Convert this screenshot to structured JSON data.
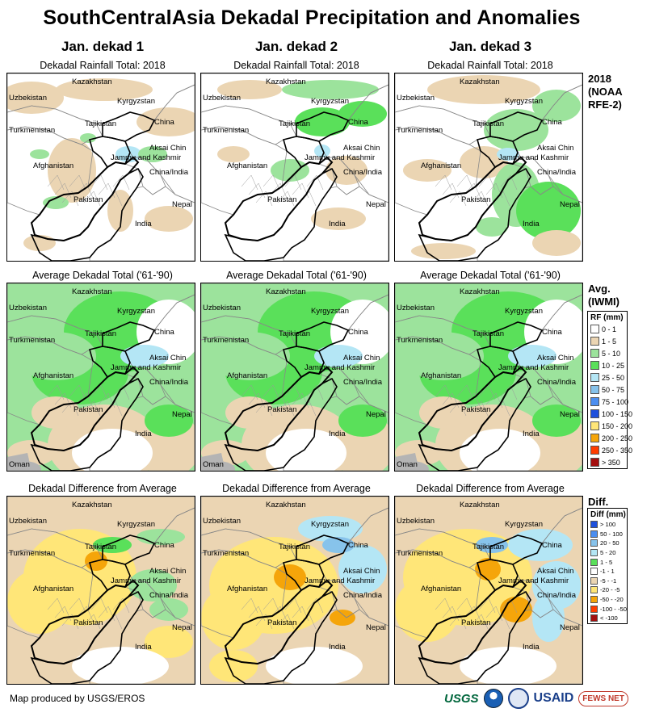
{
  "title": "SouthCentralAsia Dekadal Precipitation and Anomalies",
  "columns": [
    "Jan. dekad 1",
    "Jan. dekad 2",
    "Jan. dekad 3"
  ],
  "row_subtitles": [
    "Dekadal Rainfall Total: 2018",
    "Average Dekadal Total ('61-'90)",
    "Dekadal Difference from Average"
  ],
  "side_titles": {
    "row1": [
      "2018",
      "(NOAA",
      "RFE-2)"
    ],
    "row2": [
      "Avg.",
      "(IWMI)"
    ],
    "row3": [
      "Diff."
    ]
  },
  "map_labels": {
    "kazakhstan": "Kazakhstan",
    "uzbekistan": "Uzbekistan",
    "kyrgyzstan": "Kyrgyzstan",
    "turkmenistan": "Turkmenistan",
    "tajikistan": "Tajikistan",
    "china": "China",
    "aksai_chin": "Aksai Chin",
    "jammu_kashmir": "Jammu and Kashmir",
    "china_india": "China/India",
    "afghanistan": "Afghanistan",
    "pakistan": "Pakistan",
    "nepal": "Nepal",
    "india": "India",
    "oman": "Oman"
  },
  "rf_legend": {
    "title": "RF (mm)",
    "items": [
      {
        "label": "0 - 1",
        "color": "#ffffff"
      },
      {
        "label": "1 - 5",
        "color": "#ebd5b3"
      },
      {
        "label": "5 - 10",
        "color": "#9ce39c"
      },
      {
        "label": "10 - 25",
        "color": "#5ae05a"
      },
      {
        "label": "25 - 50",
        "color": "#b4e6f5"
      },
      {
        "label": "50 - 75",
        "color": "#87c3eb"
      },
      {
        "label": "75 - 100",
        "color": "#4b8ef0"
      },
      {
        "label": "100 - 150",
        "color": "#1e50dc"
      },
      {
        "label": "150 - 200",
        "color": "#ffe678"
      },
      {
        "label": "200 - 250",
        "color": "#f5a50a"
      },
      {
        "label": "250 - 350",
        "color": "#ff3c00"
      },
      {
        "label": "> 350",
        "color": "#a50f0f"
      }
    ]
  },
  "diff_legend": {
    "title": "Diff (mm)",
    "items": [
      {
        "label": "> 100",
        "color": "#1e50dc"
      },
      {
        "label": "50 - 100",
        "color": "#4b8ef0"
      },
      {
        "label": "20 - 50",
        "color": "#87c3eb"
      },
      {
        "label": "5 - 20",
        "color": "#b4e6f5"
      },
      {
        "label": "1 - 5",
        "color": "#5ae05a"
      },
      {
        "label": "-1 - 1",
        "color": "#ffffff"
      },
      {
        "label": "-5 - -1",
        "color": "#ebd5b3"
      },
      {
        "label": "-20 - -5",
        "color": "#ffe678"
      },
      {
        "label": "-50 - -20",
        "color": "#f5a50a"
      },
      {
        "label": "-100 - -50",
        "color": "#ff3c00"
      },
      {
        "label": "< -100",
        "color": "#a50f0f"
      }
    ]
  },
  "footer": "Map produced by USGS/EROS",
  "logos": {
    "usgs": "USGS",
    "usaid": "USAID",
    "fews": "FEWS NET"
  }
}
